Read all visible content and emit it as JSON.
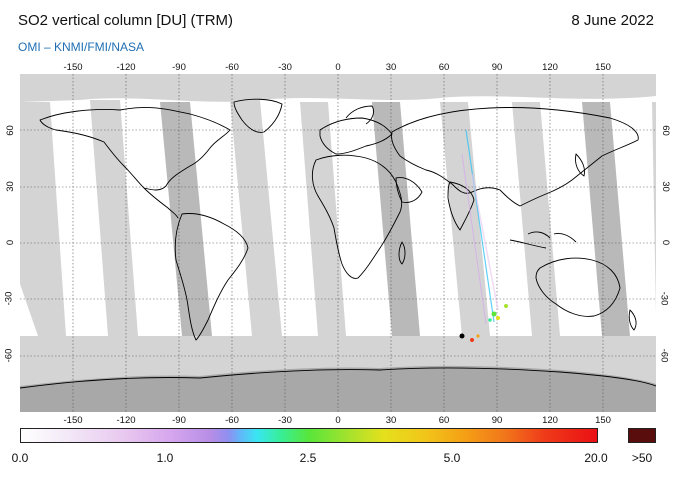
{
  "header": {
    "title": "SO2 vertical column [DU] (TRM)",
    "date": "8 June 2022",
    "source": "OMI  –  KNMI/FMI/NASA"
  },
  "map": {
    "projection": "equirectangular",
    "lon_range": [
      -180,
      180
    ],
    "lat_range": [
      -90,
      90
    ],
    "lon_ticks": [
      "-150",
      "-120",
      "-90",
      "-60",
      "-30",
      "0",
      "30",
      "60",
      "90",
      "120",
      "150"
    ],
    "lat_ticks": [
      "60",
      "30",
      "0",
      "-30",
      "-60"
    ],
    "colors": {
      "land_ocean": "#ffffff",
      "no_data": "#d4d4d4",
      "no_data_dark": "#a8a8a8",
      "coastline": "#000000",
      "grid": "#555555"
    }
  },
  "colorbar": {
    "labels": [
      "0.0",
      "1.0",
      "2.5",
      "5.0",
      "20.0",
      ">50"
    ],
    "overflow_color": "#5a0d0d"
  }
}
